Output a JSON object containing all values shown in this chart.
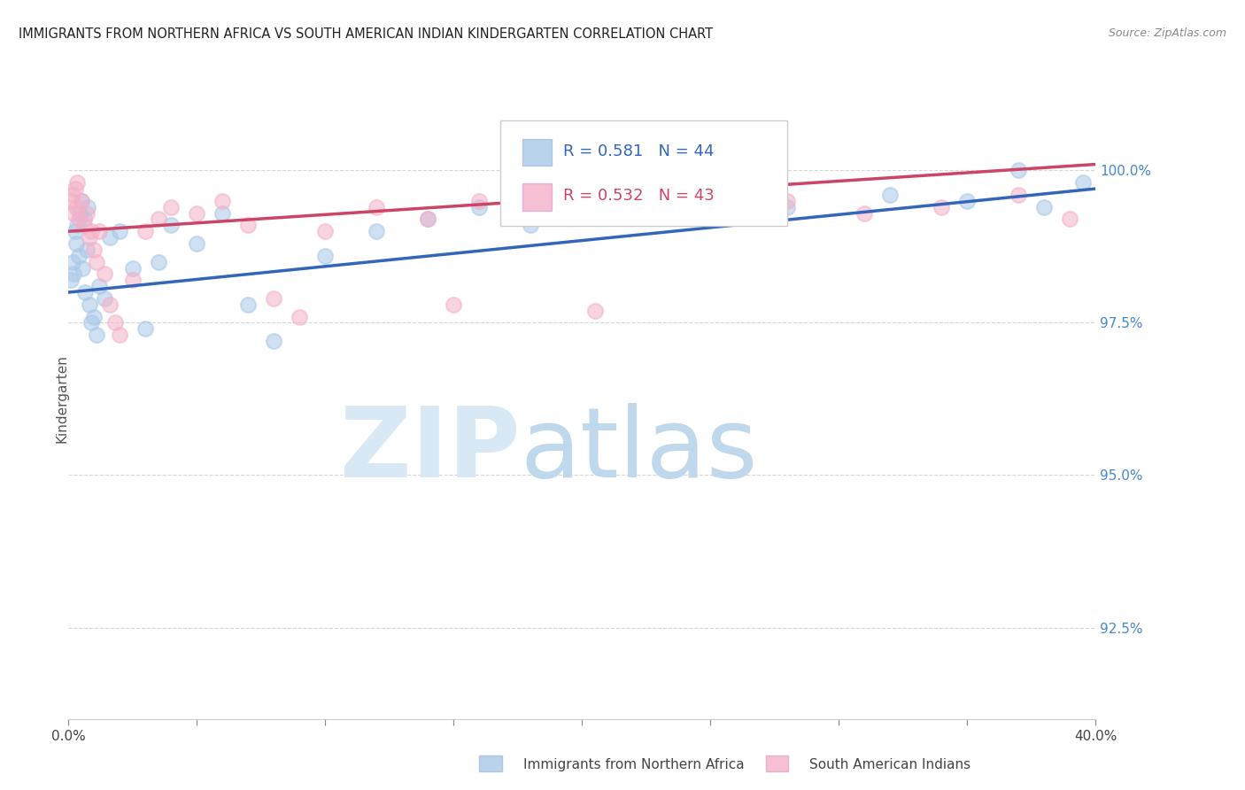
{
  "title": "IMMIGRANTS FROM NORTHERN AFRICA VS SOUTH AMERICAN INDIAN KINDERGARTEN CORRELATION CHART",
  "source": "Source: ZipAtlas.com",
  "ylabel": "Kindergarten",
  "legend_blue_R": 0.581,
  "legend_blue_N": 44,
  "legend_pink_R": 0.532,
  "legend_pink_N": 43,
  "blue_color": "#a8c8e8",
  "pink_color": "#f4b0c8",
  "blue_line_color": "#3366bb",
  "pink_line_color": "#cc4466",
  "xmin": 0.0,
  "xmax": 40.0,
  "ymin": 91.0,
  "ymax": 101.5,
  "yticks": [
    100.0,
    97.5,
    95.0,
    92.5
  ],
  "blue_scatter_x": [
    0.1,
    0.15,
    0.2,
    0.25,
    0.3,
    0.35,
    0.4,
    0.45,
    0.5,
    0.55,
    0.6,
    0.65,
    0.7,
    0.75,
    0.8,
    0.9,
    1.0,
    1.1,
    1.2,
    1.4,
    1.6,
    2.0,
    2.5,
    3.0,
    3.5,
    4.0,
    5.0,
    6.0,
    7.0,
    8.0,
    10.0,
    12.0,
    14.0,
    16.0,
    18.0,
    20.0,
    22.0,
    25.0,
    28.0,
    32.0,
    35.0,
    38.0,
    39.5,
    37.0
  ],
  "blue_scatter_y": [
    98.2,
    98.5,
    98.3,
    99.0,
    98.8,
    99.1,
    98.6,
    99.3,
    99.5,
    98.4,
    99.2,
    98.0,
    98.7,
    99.4,
    97.8,
    97.5,
    97.6,
    97.3,
    98.1,
    97.9,
    98.9,
    99.0,
    98.4,
    97.4,
    98.5,
    99.1,
    98.8,
    99.3,
    97.8,
    97.2,
    98.6,
    99.0,
    99.2,
    99.4,
    99.1,
    99.3,
    99.5,
    99.2,
    99.4,
    99.6,
    99.5,
    99.4,
    99.8,
    100.0
  ],
  "pink_scatter_x": [
    0.1,
    0.15,
    0.2,
    0.25,
    0.3,
    0.35,
    0.4,
    0.5,
    0.6,
    0.7,
    0.8,
    0.9,
    1.0,
    1.1,
    1.2,
    1.4,
    1.6,
    1.8,
    2.0,
    2.5,
    3.0,
    3.5,
    4.0,
    5.0,
    6.0,
    7.0,
    8.0,
    9.0,
    10.0,
    12.0,
    14.0,
    16.0,
    18.0,
    20.0,
    22.0,
    25.0,
    28.0,
    31.0,
    34.0,
    37.0,
    39.0,
    20.5,
    15.0
  ],
  "pink_scatter_y": [
    99.5,
    99.6,
    99.3,
    99.7,
    99.4,
    99.8,
    99.2,
    99.5,
    99.1,
    99.3,
    98.9,
    99.0,
    98.7,
    98.5,
    99.0,
    98.3,
    97.8,
    97.5,
    97.3,
    98.2,
    99.0,
    99.2,
    99.4,
    99.3,
    99.5,
    99.1,
    97.9,
    97.6,
    99.0,
    99.4,
    99.2,
    99.5,
    99.3,
    99.6,
    99.4,
    99.7,
    99.5,
    99.3,
    99.4,
    99.6,
    99.2,
    97.7,
    97.8
  ],
  "blue_trend_x0": 0.0,
  "blue_trend_x1": 40.0,
  "blue_trend_y0": 98.0,
  "blue_trend_y1": 99.7,
  "pink_trend_x0": 0.0,
  "pink_trend_x1": 40.0,
  "pink_trend_y0": 99.0,
  "pink_trend_y1": 100.1
}
